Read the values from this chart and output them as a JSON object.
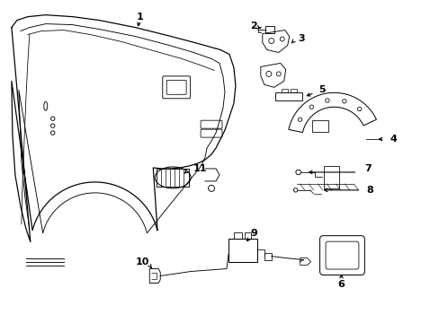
{
  "background_color": "#ffffff",
  "line_color": "#000000",
  "figsize": [
    4.89,
    3.6
  ],
  "dpi": 100,
  "xlim": [
    0,
    4.89
  ],
  "ylim": [
    0,
    3.6
  ]
}
